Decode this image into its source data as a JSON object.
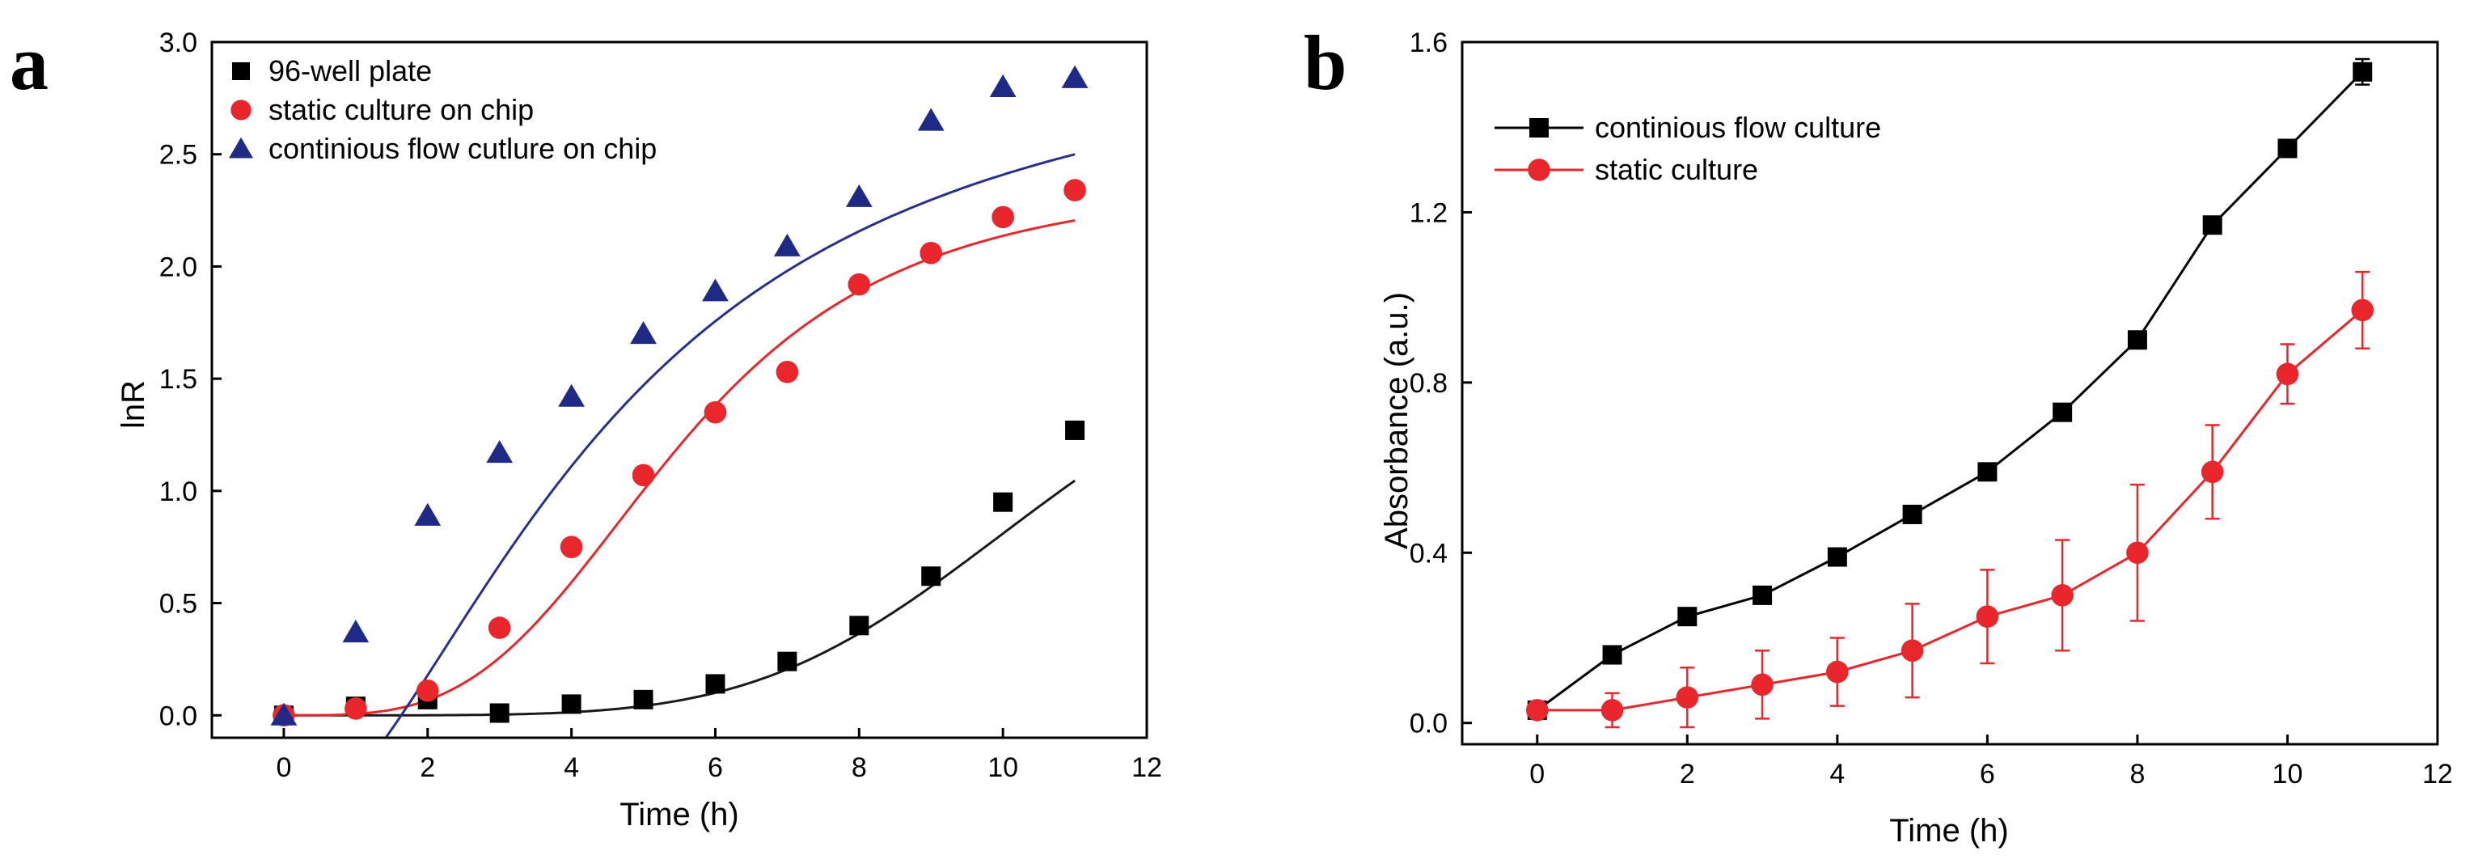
{
  "chart_data": [
    {
      "panel": "a",
      "type": "scatter",
      "xlabel": "Time (h)",
      "ylabel": "lnR",
      "xlim": [
        -1,
        12
      ],
      "ylim": [
        -0.1,
        3.0
      ],
      "xticks": [
        0,
        2,
        4,
        6,
        8,
        10,
        12
      ],
      "yticks": [
        0.0,
        0.5,
        1.0,
        1.5,
        2.0,
        2.5,
        3.0
      ],
      "ytick_labels": [
        "0.0",
        "0.5",
        "1.0",
        "1.5",
        "2.0",
        "2.5",
        "3.0"
      ],
      "legend_position": "top-left",
      "series": [
        {
          "name": "96-well plate",
          "marker": "square",
          "color": "#000000",
          "fit_color": "#1a1a1a",
          "x": [
            0,
            1,
            2,
            3,
            4,
            5,
            6,
            7,
            8,
            9,
            10,
            11
          ],
          "values": [
            0.0,
            0.04,
            0.07,
            0.01,
            0.05,
            0.07,
            0.14,
            0.24,
            0.4,
            0.62,
            0.95,
            1.27
          ],
          "fit": {
            "type": "logistic",
            "A1": 0.0,
            "A2": 2.0,
            "x0": 10.8,
            "p": 5.0
          }
        },
        {
          "name": "static culture on chip",
          "marker": "circle",
          "color": "#e8262c",
          "fit_color": "#e8262c",
          "x": [
            0,
            1,
            2,
            3,
            4,
            5,
            6,
            7,
            8,
            9,
            10,
            11
          ],
          "values": [
            0.0,
            0.03,
            0.11,
            0.39,
            0.75,
            1.07,
            1.35,
            1.53,
            1.92,
            2.06,
            2.22,
            2.34
          ],
          "fit": {
            "type": "logistic",
            "A1": 0.0,
            "A2": 2.4,
            "x0": 5.5,
            "p": 3.5
          }
        },
        {
          "name": "continious flow cutlure on chip",
          "marker": "triangle",
          "color": "#1f2a86",
          "fit_color": "#2a2f8c",
          "x": [
            0,
            1,
            2,
            3,
            4,
            5,
            6,
            7,
            8,
            9,
            10,
            11
          ],
          "values": [
            0.0,
            0.37,
            0.89,
            1.17,
            1.42,
            1.7,
            1.89,
            2.09,
            2.31,
            2.65,
            2.8,
            2.84
          ],
          "fit": {
            "type": "logistic",
            "A1": -0.5,
            "A2": 3.1,
            "x0": 4.5,
            "p": 1.8
          }
        }
      ]
    },
    {
      "panel": "b",
      "type": "line",
      "xlabel": "Time (h)",
      "ylabel": "Absorbance (a.u.)",
      "xlim": [
        -1,
        12
      ],
      "ylim": [
        -0.05,
        1.6
      ],
      "xticks": [
        0,
        2,
        4,
        6,
        8,
        10,
        12
      ],
      "yticks": [
        0.0,
        0.4,
        0.8,
        1.2,
        1.6
      ],
      "ytick_labels": [
        "0.0",
        "0.4",
        "0.8",
        "1.2",
        "1.6"
      ],
      "legend_position": "top-left",
      "series": [
        {
          "name": "continious flow culture",
          "marker": "square",
          "color": "#000000",
          "x": [
            0,
            1,
            2,
            3,
            4,
            5,
            6,
            7,
            8,
            9,
            10,
            11
          ],
          "values": [
            0.03,
            0.16,
            0.25,
            0.3,
            0.39,
            0.49,
            0.59,
            0.73,
            0.9,
            1.17,
            1.35,
            1.53
          ],
          "errors": [
            0.01,
            0.01,
            0.01,
            0.01,
            0.01,
            0.01,
            0.01,
            0.01,
            0.01,
            0.015,
            0.01,
            0.03
          ]
        },
        {
          "name": "static culture",
          "marker": "circle",
          "color": "#e8262c",
          "x": [
            0,
            1,
            2,
            3,
            4,
            5,
            6,
            7,
            8,
            9,
            10,
            11
          ],
          "values": [
            0.03,
            0.03,
            0.06,
            0.09,
            0.12,
            0.17,
            0.25,
            0.3,
            0.4,
            0.59,
            0.82,
            0.97
          ],
          "errors": [
            0.01,
            0.04,
            0.07,
            0.08,
            0.08,
            0.11,
            0.11,
            0.13,
            0.16,
            0.11,
            0.07,
            0.09
          ]
        }
      ]
    }
  ]
}
